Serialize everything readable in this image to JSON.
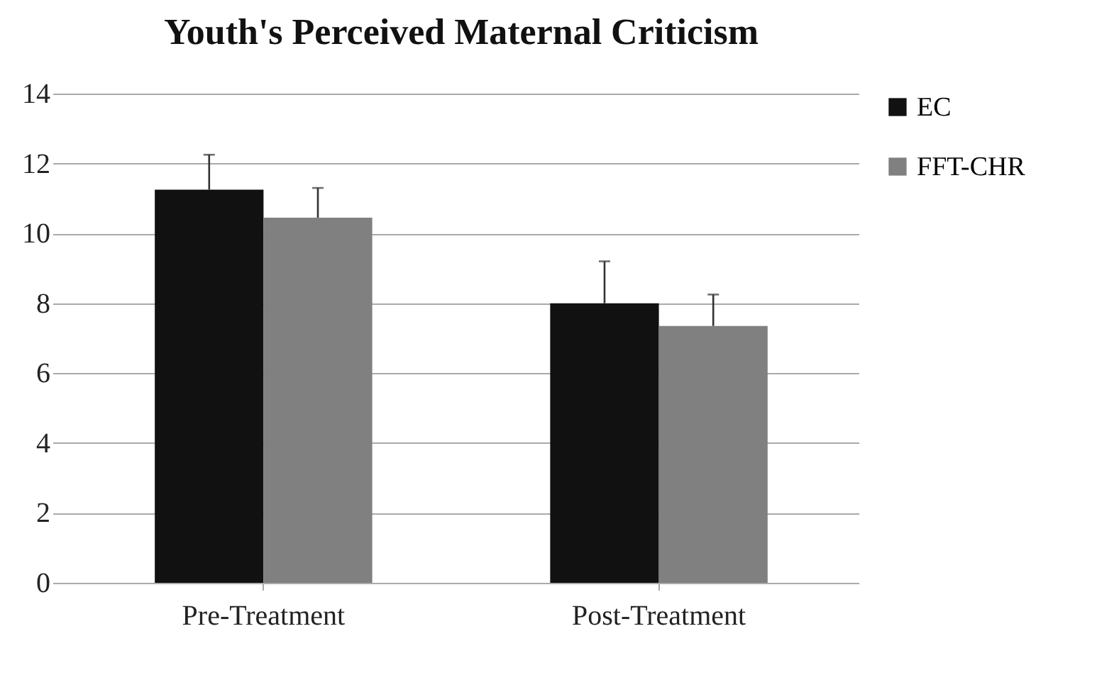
{
  "chart_data": {
    "type": "bar",
    "title": "Youth's Perceived Maternal Criticism",
    "categories": [
      "Pre-Treatment",
      "Post-Treatment"
    ],
    "series": [
      {
        "name": "EC",
        "color": "#111111",
        "values": [
          11.25,
          8.0
        ],
        "errors": [
          [
            11.25,
            12.25
          ],
          [
            8.0,
            9.2
          ]
        ]
      },
      {
        "name": "FFT-CHR",
        "color": "#808080",
        "values": [
          10.45,
          7.35
        ],
        "errors": [
          [
            10.45,
            11.3
          ],
          [
            7.35,
            8.25
          ]
        ]
      }
    ],
    "ylim": [
      0,
      14
    ],
    "yticks": [
      0,
      2,
      4,
      6,
      8,
      10,
      12,
      14
    ],
    "grid": "y",
    "legend": "right"
  }
}
